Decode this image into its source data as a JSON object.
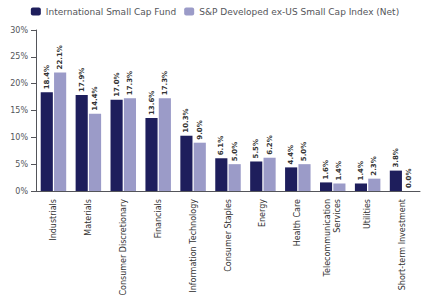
{
  "chart_data": {
    "type": "bar",
    "categories": [
      "Industrials",
      "Materials",
      "Consumer Discretionary",
      "Financials",
      "Information Technology",
      "Consumer Staples",
      "Energy",
      "Health Care",
      "Telecommunication\nServices",
      "Utilities",
      "Short-term Investment"
    ],
    "series": [
      {
        "name": "International Small Cap Fund",
        "color": "#1e1e5c",
        "values": [
          18.4,
          17.9,
          17.0,
          13.6,
          10.3,
          6.1,
          5.5,
          4.4,
          1.6,
          1.4,
          3.8
        ],
        "value_labels": [
          "18.4%",
          "17.9%",
          "17.0%",
          "13.6%",
          "10.3%",
          "6.1%",
          "5.5%",
          "4.4%",
          "1.6%",
          "1.4%",
          "3.8%"
        ]
      },
      {
        "name": "S&P Developed ex-US Small Cap Index (Net)",
        "color": "#9b9bc8",
        "values": [
          22.1,
          14.4,
          17.3,
          17.3,
          9.0,
          5.0,
          6.2,
          5.0,
          1.4,
          2.3,
          0.0
        ],
        "value_labels": [
          "22.1%",
          "14.4%",
          "17.3%",
          "17.3%",
          "9.0%",
          "5.0%",
          "6.2%",
          "5.0%",
          "1.4%",
          "2.3%",
          "0.0%"
        ]
      }
    ],
    "ylim": [
      0,
      30
    ],
    "yticks": [
      {
        "value": 0,
        "label": "0%"
      },
      {
        "value": 5,
        "label": "5%"
      },
      {
        "value": 10,
        "label": "10%"
      },
      {
        "value": 15,
        "label": "15%"
      },
      {
        "value": 20,
        "label": "20%"
      },
      {
        "value": 25,
        "label": "25%"
      },
      {
        "value": 30,
        "label": "30%"
      }
    ],
    "grid": false,
    "legend": "top",
    "data_labels": true
  }
}
